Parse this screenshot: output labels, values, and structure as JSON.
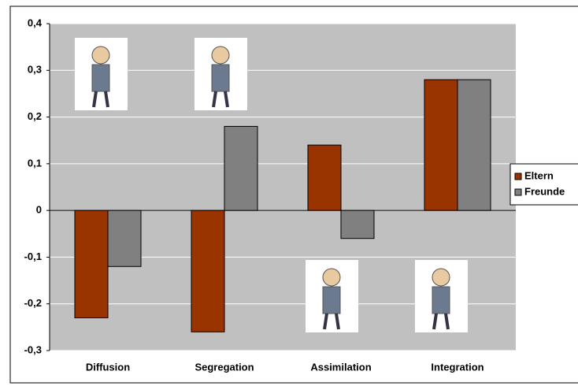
{
  "chart_data": {
    "type": "bar",
    "categories": [
      "Diffusion",
      "Segregation",
      "Assimilation",
      "Integration"
    ],
    "series": [
      {
        "name": "Eltern",
        "color": "#993300",
        "values": [
          -0.23,
          -0.26,
          0.14,
          0.28
        ]
      },
      {
        "name": "Freunde",
        "color": "#808080",
        "values": [
          -0.12,
          0.18,
          -0.06,
          0.28
        ]
      }
    ],
    "ylim": [
      -0.3,
      0.4
    ],
    "yticks": [
      {
        "value": -0.3,
        "label": "-0,3"
      },
      {
        "value": -0.2,
        "label": "-0,2"
      },
      {
        "value": -0.1,
        "label": "-0,1"
      },
      0,
      {
        "value": 0.1,
        "label": "0,1"
      },
      {
        "value": 0.2,
        "label": "0,2"
      },
      {
        "value": 0.3,
        "label": "0,3"
      },
      {
        "value": 0.4,
        "label": "0,4"
      }
    ],
    "grid": true,
    "legend": "right",
    "plot_background": "#c0c0c0"
  }
}
